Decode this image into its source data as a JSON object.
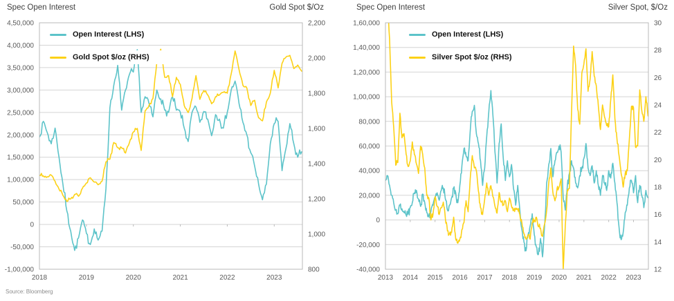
{
  "source": "Source: Bloomberg",
  "colors": {
    "open_interest": "#5cc3c9",
    "spot": "#fcd116",
    "grid": "#d4d4d4",
    "frame": "#b9b9b9"
  },
  "chart_data": [
    {
      "type": "line",
      "title_left": "Spec Open Interest",
      "title_right": "Gold Spot $/Oz",
      "x_interval": "monthly",
      "x_start_year": 2018,
      "xlim": [
        2018,
        2023.6
      ],
      "x_ticks": [
        2018,
        2019,
        2020,
        2021,
        2022,
        2023
      ],
      "x_tick_labels": [
        "2018",
        "2019",
        "2020",
        "2021",
        "2022",
        "2023"
      ],
      "grid": true,
      "legend_position": "top-left-inside",
      "lhs": {
        "lim": [
          -100000,
          450000
        ],
        "tick_values": [
          450000,
          400000,
          350000,
          300000,
          250000,
          200000,
          150000,
          100000,
          50000,
          0,
          -50000,
          -100000
        ],
        "tick_labels": [
          "4,50,000",
          "4,00,000",
          "3,50,000",
          "3,00,000",
          "2,50,000",
          "2,00,000",
          "1,50,000",
          "1,00,000",
          "50,000",
          "0",
          "-50,000",
          "-1,00,000"
        ]
      },
      "rhs": {
        "lim": [
          800,
          2200
        ],
        "tick_values": [
          2200,
          2000,
          1800,
          1600,
          1400,
          1200,
          1000,
          800
        ],
        "tick_labels": [
          "2,200",
          "2,000",
          "1,800",
          "1,600",
          "1,400",
          "1,200",
          "1,000",
          "800"
        ]
      },
      "series": [
        {
          "name": "Open Interest (LHS)",
          "axis": "lhs",
          "color": "#5cc3c9",
          "values": [
            195000,
            230000,
            205000,
            180000,
            215000,
            150000,
            90000,
            30000,
            -15000,
            -58000,
            -30000,
            10000,
            -20000,
            -45000,
            -10000,
            -35000,
            -15000,
            80000,
            260000,
            310000,
            355000,
            255000,
            300000,
            335000,
            340000,
            390000,
            250000,
            285000,
            270000,
            240000,
            300000,
            280000,
            255000,
            250000,
            285000,
            255000,
            250000,
            215000,
            185000,
            250000,
            262000,
            228000,
            252000,
            235000,
            198000,
            245000,
            235000,
            215000,
            250000,
            300000,
            320000,
            270000,
            228000,
            200000,
            160000,
            130000,
            90000,
            55000,
            90000,
            180000,
            225000,
            230000,
            120000,
            170000,
            225000,
            180000,
            150000,
            162000
          ]
        },
        {
          "name": "Gold Spot $/oz (RHS)",
          "axis": "rhs",
          "color": "#fcd116",
          "values": [
            1335,
            1330,
            1325,
            1335,
            1300,
            1255,
            1220,
            1185,
            1200,
            1225,
            1215,
            1260,
            1290,
            1320,
            1295,
            1280,
            1300,
            1410,
            1425,
            1520,
            1490,
            1490,
            1460,
            1520,
            1580,
            1600,
            1475,
            1700,
            1730,
            1770,
            1975,
            2050,
            1890,
            1900,
            1780,
            1890,
            1850,
            1730,
            1690,
            1770,
            1900,
            1765,
            1815,
            1790,
            1740,
            1780,
            1790,
            1805,
            1800,
            1910,
            2040,
            1935,
            1845,
            1830,
            1730,
            1760,
            1660,
            1643,
            1750,
            1800,
            1930,
            1830,
            1970,
            2005,
            2015,
            1940,
            1960,
            1925
          ]
        }
      ]
    },
    {
      "type": "line",
      "title_left": "Spec Open Interest",
      "title_right": "Silver Spot, $/Oz",
      "x_interval": "monthly",
      "x_start_year": 2013,
      "xlim": [
        2013,
        2023.6
      ],
      "x_ticks": [
        2013,
        2014,
        2015,
        2016,
        2017,
        2018,
        2019,
        2020,
        2021,
        2022,
        2023
      ],
      "x_tick_labels": [
        "2013",
        "2014",
        "2015",
        "2016",
        "2017",
        "2018",
        "2019",
        "2020",
        "2021",
        "2022",
        "2023"
      ],
      "grid": true,
      "legend_position": "top-left-inside",
      "lhs": {
        "lim": [
          -40000,
          160000
        ],
        "tick_values": [
          160000,
          140000,
          120000,
          100000,
          80000,
          60000,
          40000,
          20000,
          0,
          -20000,
          -40000
        ],
        "tick_labels": [
          "1,60,000",
          "1,40,000",
          "1,20,000",
          "1,00,000",
          "80,000",
          "60,000",
          "40,000",
          "20,000",
          "0",
          "-20,000",
          "-40,000"
        ]
      },
      "rhs": {
        "lim": [
          12,
          30
        ],
        "tick_values": [
          30,
          28,
          26,
          24,
          22,
          20,
          18,
          16,
          14,
          12
        ],
        "tick_labels": [
          "30",
          "28",
          "26",
          "24",
          "22",
          "20",
          "18",
          "16",
          "14",
          "12"
        ]
      },
      "series": [
        {
          "name": "Open Interest (LHS)",
          "axis": "lhs",
          "color": "#5cc3c9",
          "values": [
            32000,
            36000,
            28000,
            20000,
            14000,
            8000,
            5000,
            12000,
            9000,
            6000,
            4000,
            6000,
            10000,
            14000,
            22000,
            24000,
            17000,
            11000,
            21000,
            14000,
            6000,
            4000,
            7000,
            12000,
            18000,
            22000,
            16000,
            24000,
            26000,
            17000,
            8000,
            12000,
            18000,
            26000,
            22000,
            14000,
            28000,
            44000,
            58000,
            52000,
            48000,
            72000,
            88000,
            93000,
            70000,
            62000,
            48000,
            28000,
            42000,
            68000,
            88000,
            105000,
            85000,
            55000,
            30000,
            62000,
            78000,
            50000,
            32000,
            48000,
            35000,
            45000,
            25000,
            12000,
            28000,
            8000,
            -8000,
            -18000,
            -25000,
            -12000,
            -5000,
            5000,
            -12000,
            -22000,
            -28000,
            -15000,
            -30000,
            -5000,
            30000,
            45000,
            58000,
            35000,
            48000,
            55000,
            60000,
            55000,
            18000,
            8000,
            28000,
            38000,
            48000,
            42000,
            30000,
            26000,
            36000,
            42000,
            50000,
            62000,
            42000,
            36000,
            44000,
            30000,
            40000,
            28000,
            20000,
            36000,
            30000,
            24000,
            40000,
            34000,
            46000,
            30000,
            14000,
            -6000,
            -16000,
            -10000,
            6000,
            12000,
            26000,
            32000,
            22000,
            36000,
            14000,
            28000,
            20000,
            10000,
            24000,
            18000
          ]
        },
        {
          "name": "Silver Spot $/oz (RHS)",
          "axis": "rhs",
          "color": "#fcd116",
          "values": [
            30.8,
            31.4,
            28.8,
            24.2,
            22.4,
            19.6,
            19.8,
            23.4,
            21.6,
            21.9,
            20.4,
            19.5,
            19.9,
            21.3,
            20.4,
            19.7,
            19.0,
            21.0,
            20.4,
            19.4,
            17.4,
            17.2,
            15.6,
            16.0,
            17.3,
            16.6,
            16.0,
            16.5,
            16.9,
            15.7,
            14.8,
            14.6,
            14.7,
            15.8,
            14.2,
            13.9,
            14.2,
            14.9,
            15.4,
            17.0,
            16.2,
            18.6,
            20.3,
            19.4,
            19.2,
            17.7,
            16.5,
            16.0,
            17.1,
            18.3,
            17.4,
            18.1,
            17.3,
            16.6,
            16.1,
            17.6,
            16.9,
            16.7,
            17.0,
            16.2,
            17.2,
            16.6,
            16.3,
            16.4,
            16.4,
            16.0,
            15.4,
            14.6,
            14.2,
            14.5,
            14.2,
            15.4,
            15.6,
            15.8,
            15.1,
            15.0,
            14.4,
            15.3,
            16.3,
            18.3,
            19.4,
            17.6,
            17.0,
            17.9,
            18.0,
            18.6,
            12.0,
            15.2,
            17.8,
            17.9,
            23.4,
            28.3,
            26.9,
            23.7,
            22.6,
            26.3,
            27.0,
            28.1,
            25.0,
            25.9,
            27.9,
            26.1,
            25.4,
            23.9,
            22.2,
            24.0,
            23.1,
            22.5,
            22.4,
            24.4,
            26.2,
            23.0,
            21.5,
            20.3,
            19.0,
            18.0,
            19.0,
            19.2,
            21.5,
            23.9,
            23.8,
            20.9,
            21.0,
            25.1,
            23.6,
            22.8,
            24.6,
            23.2
          ]
        }
      ]
    }
  ]
}
